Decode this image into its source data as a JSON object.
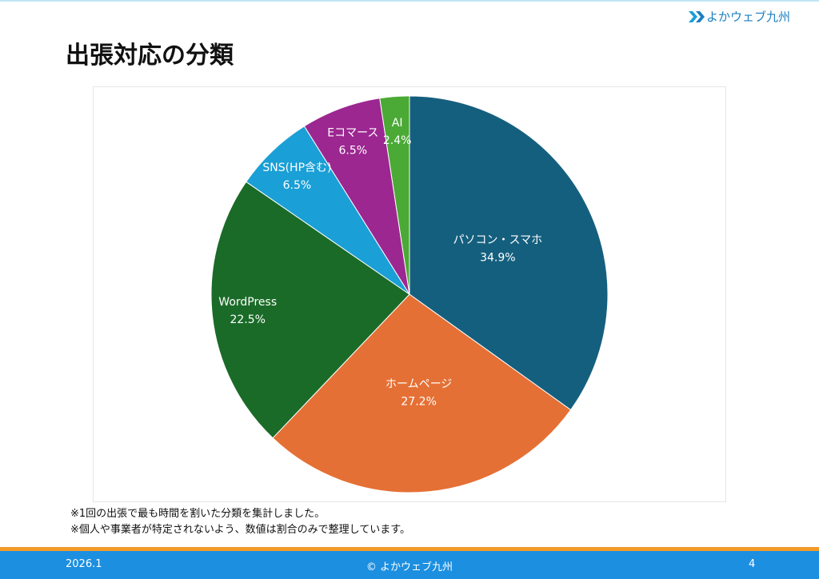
{
  "header": {
    "logo": "よかウェブ九州"
  },
  "chart_data": {
    "type": "pie",
    "title": "出張対応の分類",
    "categories": [
      "パソコン・スマホ",
      "ホームページ",
      "WordPress",
      "SNS(HP含む)",
      "Eコマース",
      "AI"
    ],
    "values": [
      34.9,
      27.2,
      22.5,
      6.5,
      6.5,
      2.4
    ],
    "value_labels": [
      "34.9%",
      "27.2%",
      "22.5%",
      "6.5%",
      "6.5%",
      "2.4%"
    ],
    "colors": [
      "#155f7e",
      "#e57035",
      "#1a6b28",
      "#1a9fd6",
      "#9c2791",
      "#4aaa35"
    ]
  },
  "notes": [
    "※1回の出張で最も時間を割いた分類を集計しました。",
    "※個人や事業者が特定されないよう、数値は割合のみで整理しています。"
  ],
  "footer": {
    "date": "2026.1",
    "copyright": "© よかウェブ九州",
    "page": "4"
  }
}
